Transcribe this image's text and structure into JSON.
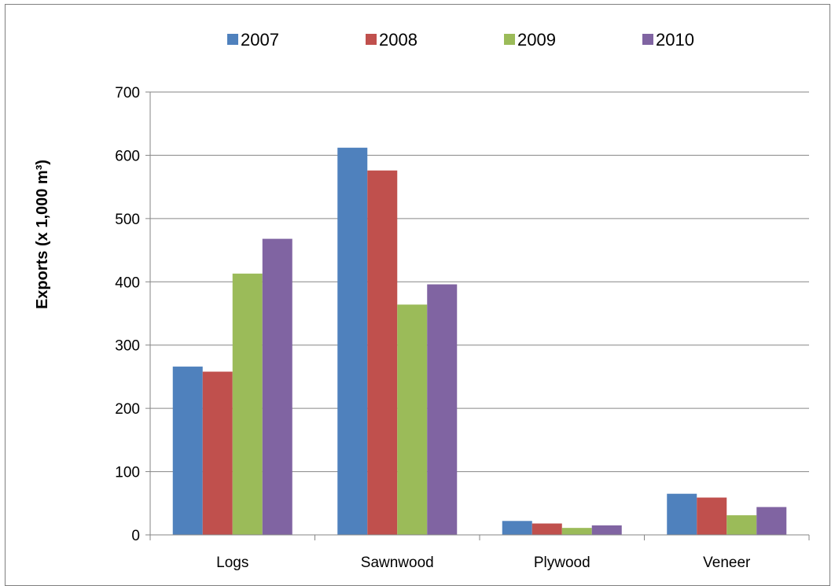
{
  "chart_data": {
    "type": "bar",
    "title": "",
    "xlabel": "",
    "ylabel": "Exports (x 1,000 m³)",
    "categories": [
      "Logs",
      "Sawnwood",
      "Plywood",
      "Veneer"
    ],
    "series": [
      {
        "name": "2007",
        "color": "#4F81BD",
        "values": [
          266,
          612,
          22,
          65
        ]
      },
      {
        "name": "2008",
        "color": "#C0504D",
        "values": [
          258,
          576,
          18,
          59
        ]
      },
      {
        "name": "2009",
        "color": "#9BBB59",
        "values": [
          413,
          364,
          11,
          31
        ]
      },
      {
        "name": "2010",
        "color": "#8064A2",
        "values": [
          468,
          396,
          15,
          44
        ]
      }
    ],
    "ylim": [
      0,
      700
    ],
    "yticks": [
      0,
      100,
      200,
      300,
      400,
      500,
      600,
      700
    ],
    "grid": true,
    "legend_position": "top"
  }
}
